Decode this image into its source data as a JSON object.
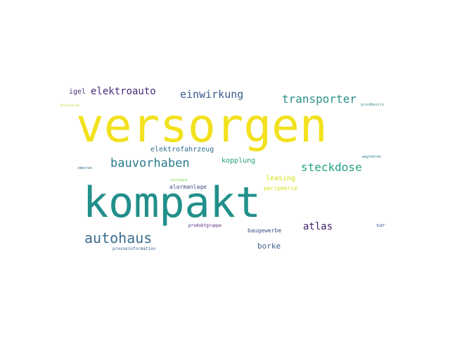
{
  "cloud": {
    "words": [
      {
        "text": "versorgen",
        "color": "#f2e11e"
      },
      {
        "text": "kompakt",
        "color": "#218f8a"
      },
      {
        "text": "bauvorhaben",
        "color": "#2a7b8e"
      },
      {
        "text": "autohaus",
        "color": "#3b6c8d"
      },
      {
        "text": "steckdose",
        "color": "#23a083"
      },
      {
        "text": "transporter",
        "color": "#2a8f8a"
      },
      {
        "text": "einwirkung",
        "color": "#3a5b8c"
      },
      {
        "text": "elektroauto",
        "color": "#472a7a"
      },
      {
        "text": "atlas",
        "color": "#3f1e66"
      },
      {
        "text": "igel",
        "color": "#462d7a"
      },
      {
        "text": "elektrofahrzeug",
        "color": "#2f6c8e"
      },
      {
        "text": "kopplung",
        "color": "#25a07e"
      },
      {
        "text": "leasing",
        "color": "#d4e21a"
      },
      {
        "text": "peripherie",
        "color": "#d2e21b"
      },
      {
        "text": "alarmanlage",
        "color": "#42508a"
      },
      {
        "text": "baugewerbe",
        "color": "#3a548c"
      },
      {
        "text": "borke",
        "color": "#3f5f8e"
      },
      {
        "text": "produktgruppe",
        "color": "#4b1d6c"
      },
      {
        "text": "presseinformation",
        "color": "#3a618d"
      },
      {
        "text": "eintagig",
        "color": "#7fd34e"
      },
      {
        "text": "zmexran",
        "color": "#2c738e"
      },
      {
        "text": "wegfahren",
        "color": "#2a7f8e"
      },
      {
        "text": "grundbesitz",
        "color": "#3a8a8a"
      },
      {
        "text": "sur",
        "color": "#3c4e8a"
      },
      {
        "text": "kontrastrum",
        "color": "#bdde26"
      }
    ]
  }
}
